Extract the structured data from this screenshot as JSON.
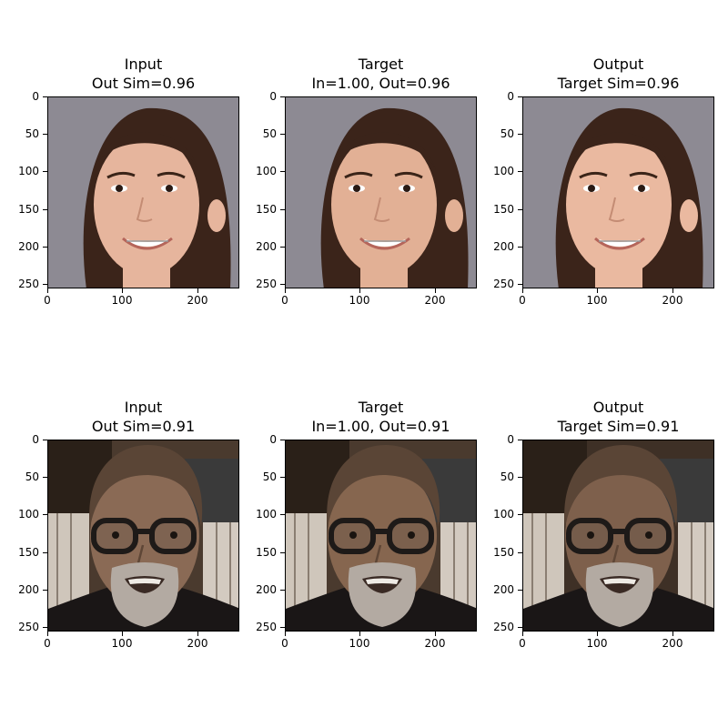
{
  "panels": [
    {
      "title_line1": "Input",
      "title_line2": "Out Sim=0.96",
      "face": "girl",
      "variant": 0
    },
    {
      "title_line1": "Target",
      "title_line2": "In=1.00, Out=0.96",
      "face": "girl",
      "variant": 1
    },
    {
      "title_line1": "Output",
      "title_line2": "Target Sim=0.96",
      "face": "girl",
      "variant": 2
    },
    {
      "title_line1": "Input",
      "title_line2": "Out Sim=0.91",
      "face": "man",
      "variant": 0
    },
    {
      "title_line1": "Target",
      "title_line2": "In=1.00, Out=0.91",
      "face": "man",
      "variant": 1
    },
    {
      "title_line1": "Output",
      "title_line2": "Target Sim=0.91",
      "face": "man",
      "variant": 2
    }
  ],
  "chart_data": {
    "type": "image-grid",
    "rows": 2,
    "cols": 3,
    "image_size": [
      256,
      256
    ],
    "x_ticks": [
      0,
      100,
      200
    ],
    "y_ticks": [
      0,
      50,
      100,
      150,
      200,
      250
    ],
    "xlim": [
      0,
      256
    ],
    "ylim": [
      256,
      0
    ],
    "similarities": [
      {
        "row": 1,
        "input_out_sim": 0.96,
        "target_in": 1.0,
        "target_out": 0.96,
        "output_target_sim": 0.96
      },
      {
        "row": 2,
        "input_out_sim": 0.91,
        "target_in": 1.0,
        "target_out": 0.91,
        "output_target_sim": 0.91
      }
    ]
  },
  "colors": {
    "girl_bg": "#8d8a93",
    "girl_hair": "#3b241a",
    "girl_skin": "#e6b59d",
    "man_bg": "#4a3a2e",
    "man_skin": "#8a6a55",
    "man_jacket": "#1a1616",
    "man_beard": "#b3aaa2"
  }
}
